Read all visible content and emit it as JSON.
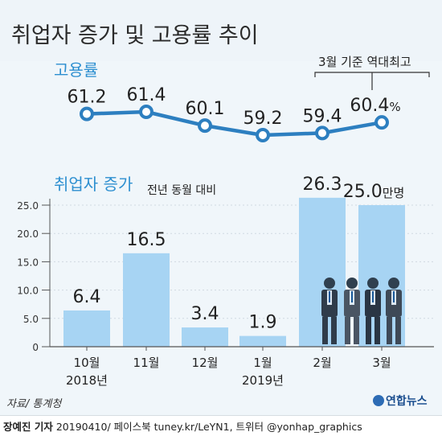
{
  "title": "취업자 증가 및 고용률 추이",
  "employment_rate": {
    "label": "고용률",
    "unit_suffix": "%",
    "annotation": "3월 기준 역대최고",
    "line_color": "#2d7fc0"
  },
  "employment_increase": {
    "label": "취업자 증가",
    "sublabel": "전년 동월 대비",
    "unit_suffix": "만명",
    "bar_color": "#a7d4f3"
  },
  "year_labels": [
    "2018년",
    "2019년"
  ],
  "source": "자료/ 통계청",
  "credit": {
    "reporter": "장예진 기자",
    "rest": " 20190410/ 페이스북 tuney.kr/LeYN1, 트위터 @yonhap_graphics"
  },
  "logo": "연합뉴스",
  "chart_data": [
    {
      "type": "line",
      "name": "고용률",
      "categories": [
        "10월",
        "11월",
        "12월",
        "1월",
        "2월",
        "3월"
      ],
      "values": [
        61.2,
        61.4,
        60.1,
        59.2,
        59.4,
        60.4
      ],
      "unit": "%"
    },
    {
      "type": "bar",
      "name": "취업자 증가",
      "categories": [
        "10월",
        "11월",
        "12월",
        "1월",
        "2월",
        "3월"
      ],
      "values": [
        6.4,
        16.5,
        3.4,
        1.9,
        26.3,
        25.0
      ],
      "value_labels": [
        "6.4",
        "16.5",
        "3.4",
        "1.9",
        "26.3",
        "25.0"
      ],
      "unit": "만명",
      "ylim": [
        0,
        25
      ],
      "yticks": [
        "0",
        "5.0",
        "10.0",
        "15.0",
        "20.0",
        "25.0"
      ],
      "grid": true
    }
  ]
}
